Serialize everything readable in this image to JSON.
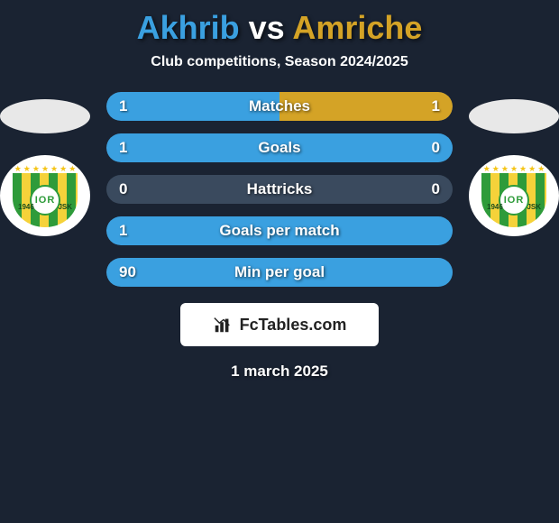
{
  "colors": {
    "background": "#1a2332",
    "title_left": "#3aa0e0",
    "title_vs": "#ffffff",
    "title_right": "#d4a326",
    "pill_bg": "#3a4a5e",
    "left_fill": "#3aa0e0",
    "right_fill": "#d4a326",
    "badge_bg": "#ffffff",
    "badge_stripe_green": "#2e9b3a",
    "badge_stripe_yellow": "#f5d23a",
    "star": "#f5c518"
  },
  "title": {
    "left": "Akhrib",
    "vs": "vs",
    "right": "Amriche"
  },
  "subtitle": "Club competitions, Season 2024/2025",
  "badge": {
    "monogram": "IOR",
    "year_left": "1946",
    "year_right": "JSK",
    "star_count": 7
  },
  "stats": [
    {
      "label": "Matches",
      "left_val": "1",
      "right_val": "1",
      "left_pct": 50,
      "right_pct": 50
    },
    {
      "label": "Goals",
      "left_val": "1",
      "right_val": "0",
      "left_pct": 100,
      "right_pct": 0
    },
    {
      "label": "Hattricks",
      "left_val": "0",
      "right_val": "0",
      "left_pct": 0,
      "right_pct": 0
    },
    {
      "label": "Goals per match",
      "left_val": "1",
      "right_val": "",
      "left_pct": 100,
      "right_pct": 0
    },
    {
      "label": "Min per goal",
      "left_val": "90",
      "right_val": "",
      "left_pct": 100,
      "right_pct": 0
    }
  ],
  "footer_brand": "FcTables.com",
  "footer_date": "1 march 2025"
}
